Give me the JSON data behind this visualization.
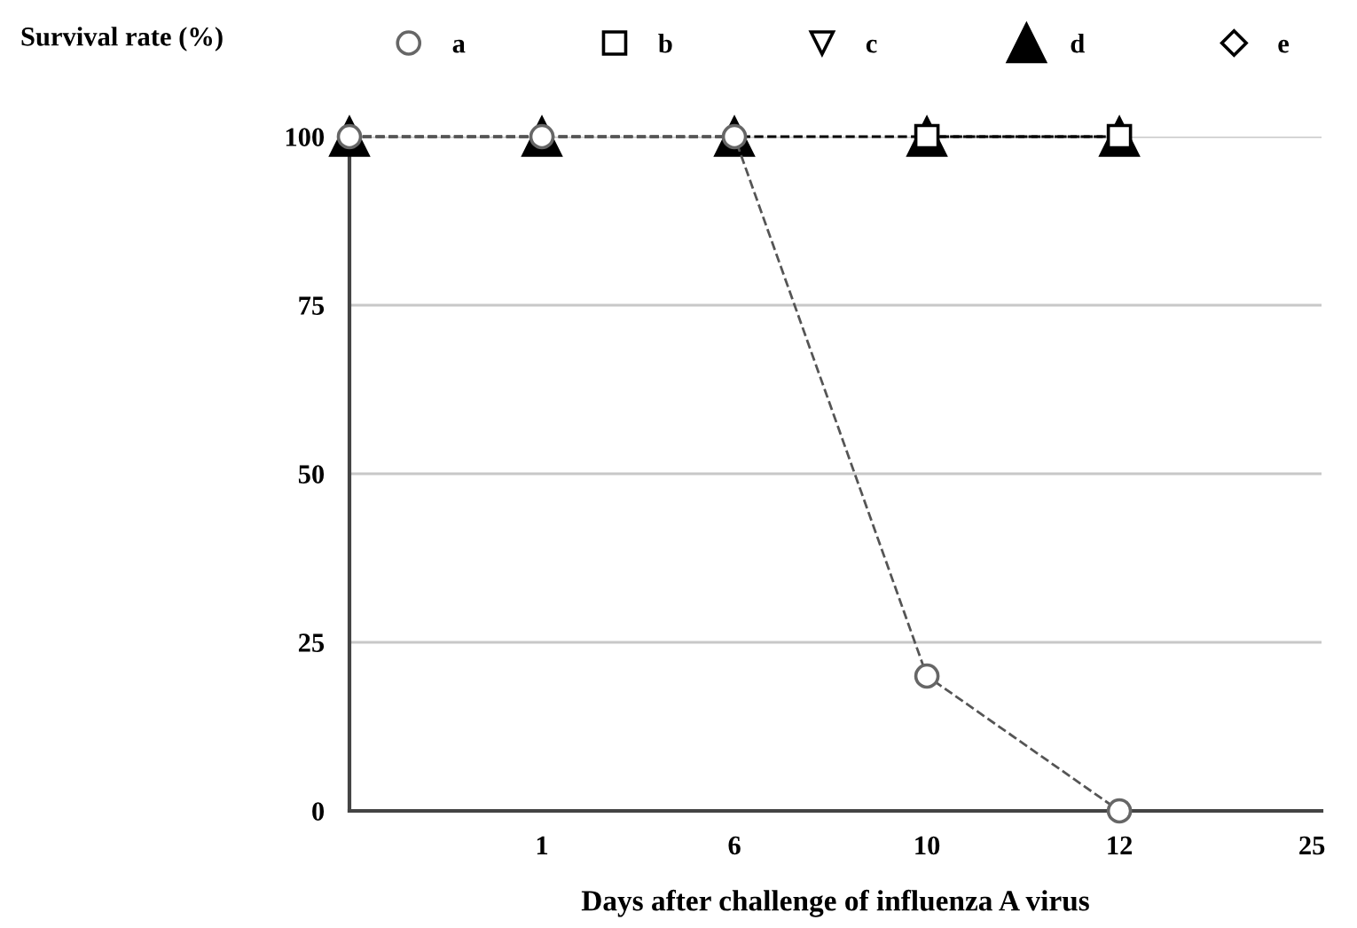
{
  "chart_data": {
    "type": "line",
    "ylabel": "Survival rate (%)",
    "xlabel": "Days after challenge of influenza A virus",
    "categories": [
      null,
      "1",
      "6",
      "10",
      "12",
      "25"
    ],
    "series": [
      {
        "name": "a",
        "color": "#555555",
        "marker": "circle",
        "values": [
          100,
          100,
          100,
          20,
          0,
          null
        ]
      },
      {
        "name": "b",
        "color": "#000000",
        "marker": "square",
        "values": [
          null,
          null,
          null,
          100,
          100,
          null
        ]
      },
      {
        "name": "c",
        "color": "#000000",
        "marker": "triangle_down",
        "values": [
          null,
          null,
          null,
          null,
          null,
          null
        ]
      },
      {
        "name": "d",
        "color": "#000000",
        "marker": "triangle",
        "values": [
          100,
          100,
          100,
          100,
          100,
          null
        ]
      },
      {
        "name": "e",
        "color": "#000000",
        "marker": "diamond",
        "values": [
          null,
          null,
          null,
          null,
          null,
          null
        ]
      }
    ],
    "ylim": [
      0,
      100
    ],
    "yticks": [
      0,
      25,
      50,
      75,
      100
    ],
    "grid": "y",
    "legend": "top",
    "line_style": "dashed"
  }
}
